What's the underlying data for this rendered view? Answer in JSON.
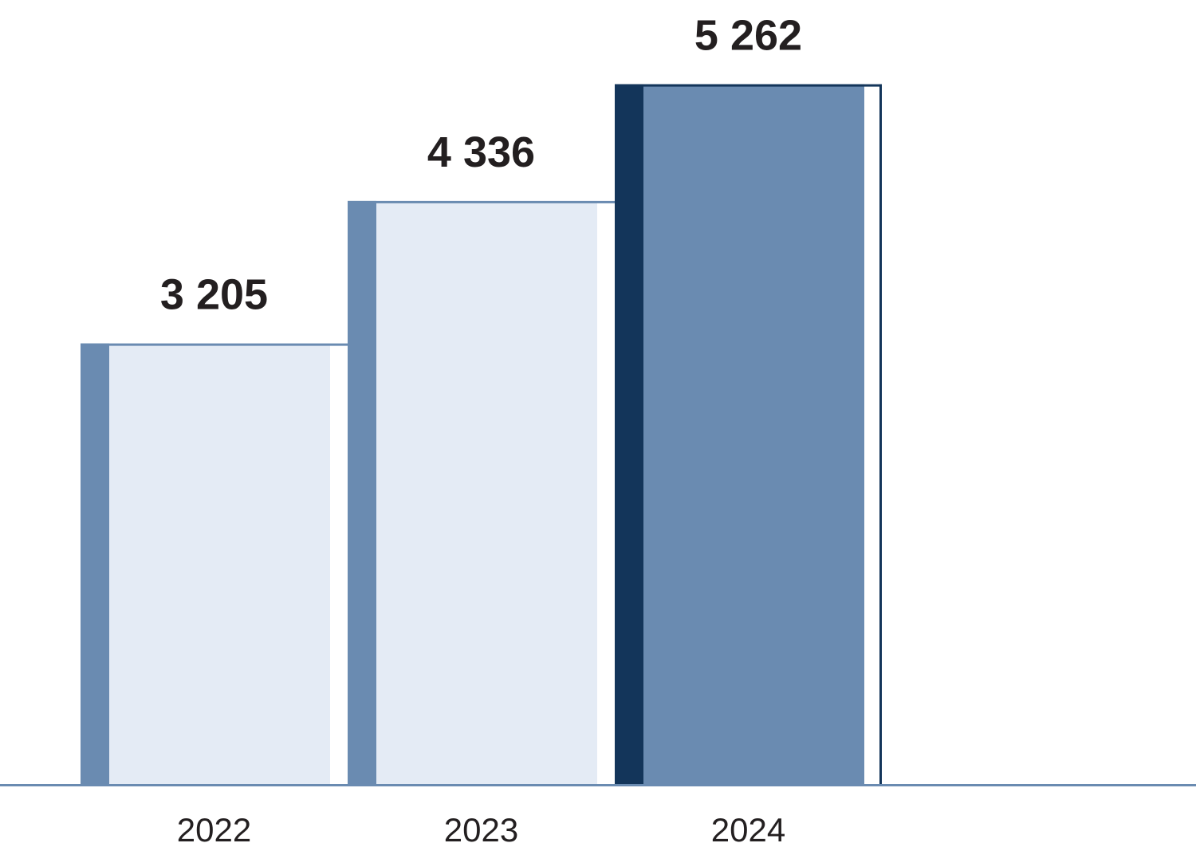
{
  "chart_data": {
    "type": "bar",
    "title": "",
    "xlabel": "",
    "ylabel": "",
    "categories": [
      "2022",
      "2023",
      "2024"
    ],
    "values": [
      3205,
      4336,
      5262
    ],
    "value_labels": [
      "3 205",
      "4 336",
      "5 262"
    ],
    "grid": false,
    "legend": "none",
    "colors": {
      "bar_fill": "#e4ebf5",
      "bar_accent": "#6a8bb1",
      "highlight_fill": "#6a8bb1",
      "highlight_accent": "#13355a",
      "baseline": "#6a8bb1",
      "text": "#231f20"
    },
    "highlighted_category": "2024"
  }
}
